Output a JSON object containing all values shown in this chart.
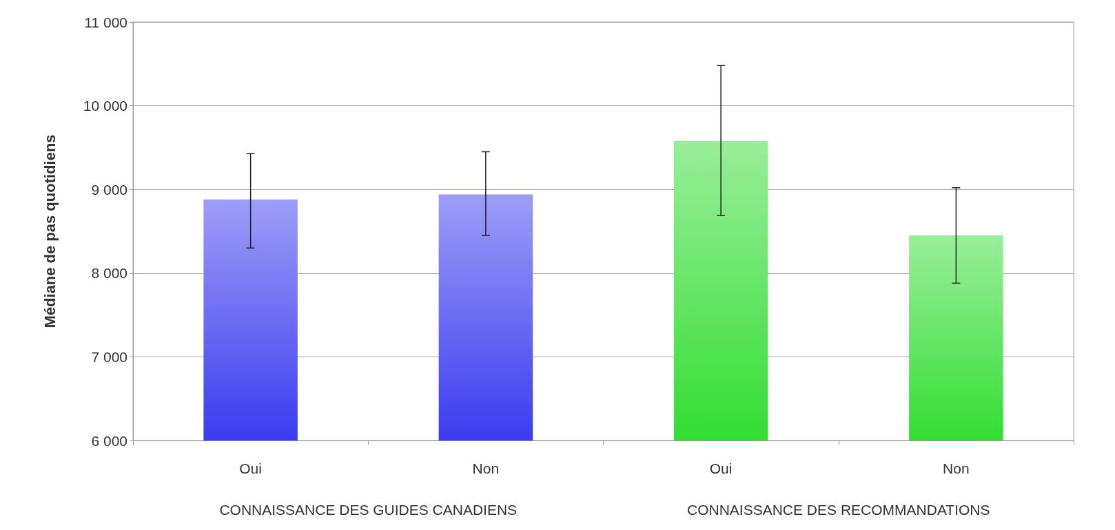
{
  "chart_data": {
    "type": "bar",
    "ylabel": "Médiane de pas quotidiens",
    "categories": [
      "Oui",
      "Non",
      "Oui",
      "Non"
    ],
    "values": [
      8880,
      8940,
      9580,
      8450
    ],
    "errors": [
      [
        8300,
        9430
      ],
      [
        8450,
        9450
      ],
      [
        8690,
        10480
      ],
      [
        7880,
        9020
      ]
    ],
    "colors": [
      "#3b3bf0",
      "#3b3bf0",
      "#33dd33",
      "#33dd33"
    ],
    "ylim": [
      6000,
      11000
    ],
    "yticks": [
      {
        "value": 6000,
        "label": "6 000"
      },
      {
        "value": 7000,
        "label": "7 000"
      },
      {
        "value": 8000,
        "label": "8 000"
      },
      {
        "value": 9000,
        "label": "9 000"
      },
      {
        "value": 10000,
        "label": "10 000"
      },
      {
        "value": 11000,
        "label": "11 000"
      }
    ],
    "grid": "y",
    "annotations": [
      "CONNAISSANCE DES GUIDES CANADIENS",
      "CONNAISSANCE DES RECOMMANDATIONS"
    ]
  }
}
